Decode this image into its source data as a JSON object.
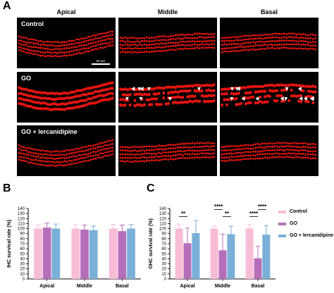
{
  "panel_a": {
    "letter": "A",
    "columns": [
      "Apical",
      "Middle",
      "Basal"
    ],
    "rows": [
      {
        "label": "Control",
        "pattern": "normal"
      },
      {
        "label": "GO",
        "pattern": "damaged"
      },
      {
        "label": "GO + lercanidipine",
        "pattern": "normal"
      }
    ],
    "scale_bar": "50 μm",
    "fluorescence_color": "#e8150f",
    "marker_color": "#ffffff"
  },
  "chart_data": [
    {
      "panel": "B",
      "type": "bar",
      "categories": [
        "Apical",
        "Middle",
        "Basal"
      ],
      "series": [
        {
          "name": "Control",
          "values": [
            100,
            100,
            100
          ],
          "errors": [
            7,
            8,
            8
          ],
          "color": "#f9bcd5"
        },
        {
          "name": "GO",
          "values": [
            102,
            98,
            95
          ],
          "errors": [
            9,
            9,
            12
          ],
          "color": "#b56fb9"
        },
        {
          "name": "GO + lercanidipine",
          "values": [
            100,
            97,
            100
          ],
          "errors": [
            9,
            8,
            8
          ],
          "color": "#7aafd8"
        }
      ],
      "ylabel": "IHC survival rate (%)",
      "ylim": [
        0,
        140
      ],
      "yticks": [
        0,
        10,
        20,
        30,
        40,
        50,
        60,
        70,
        80,
        90,
        100,
        110,
        120,
        130,
        140
      ],
      "significance": []
    },
    {
      "panel": "C",
      "type": "bar",
      "categories": [
        "Apical",
        "Middle",
        "Basal"
      ],
      "series": [
        {
          "name": "Control",
          "values": [
            100,
            100,
            100
          ],
          "errors": [
            9,
            5,
            8
          ],
          "color": "#f9bcd5"
        },
        {
          "name": "GO",
          "values": [
            71,
            57,
            41
          ],
          "errors": [
            30,
            32,
            24
          ],
          "color": "#b56fb9"
        },
        {
          "name": "GO + lercanidipine",
          "values": [
            91,
            89,
            88
          ],
          "errors": [
            25,
            16,
            18
          ],
          "color": "#7aafd8"
        }
      ],
      "ylabel": "OHC survival rate (%)",
      "ylim": [
        0,
        140
      ],
      "yticks": [
        0,
        10,
        20,
        30,
        40,
        50,
        60,
        70,
        80,
        90,
        100,
        110,
        120,
        130,
        140
      ],
      "significance": [
        {
          "category": 0,
          "from": 0,
          "to": 1,
          "label": "**",
          "y": 124
        },
        {
          "category": 1,
          "from": 0,
          "to": 1,
          "label": "****",
          "y": 138
        },
        {
          "category": 1,
          "from": 1,
          "to": 2,
          "label": "**",
          "y": 124
        },
        {
          "category": 2,
          "from": 0,
          "to": 1,
          "label": "****",
          "y": 124
        },
        {
          "category": 2,
          "from": 1,
          "to": 2,
          "label": "****",
          "y": 138
        }
      ]
    }
  ],
  "legend": [
    "Control",
    "GO",
    "GO + lercanidipine"
  ]
}
